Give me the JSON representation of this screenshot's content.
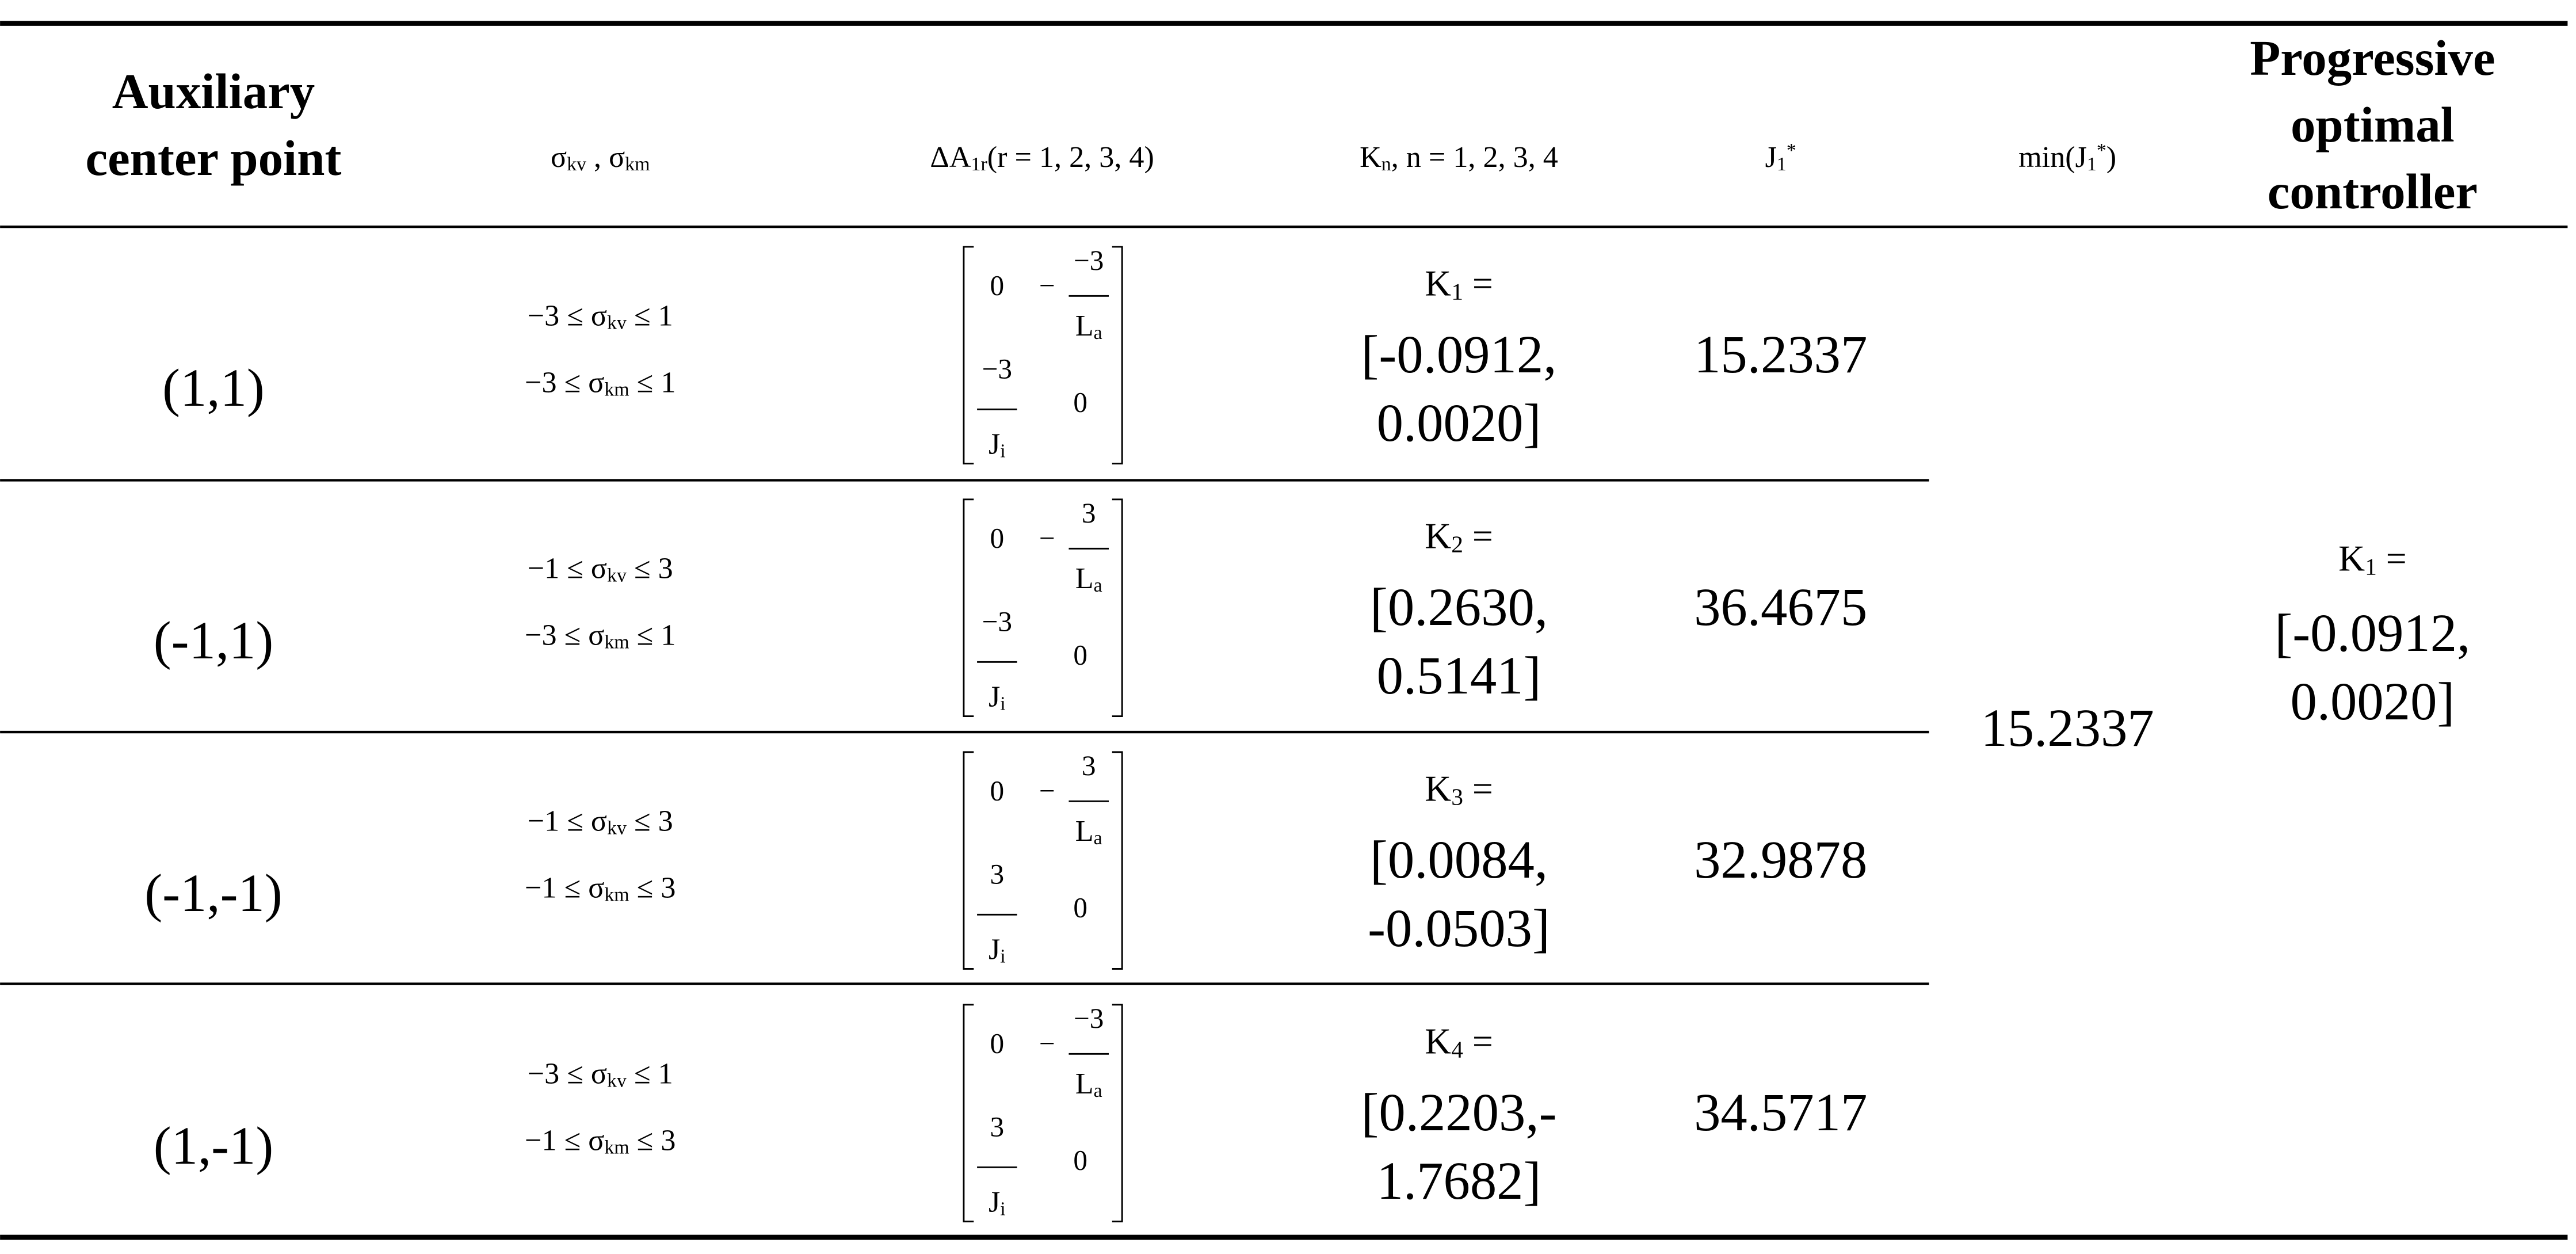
{
  "table": {
    "headers": [
      [
        [
          {
            "t": "Auxiliary"
          }
        ],
        [
          {
            "t": "center point"
          }
        ]
      ],
      [
        [
          {
            "t": "σ"
          },
          {
            "t": "kv",
            "s": "sub"
          },
          {
            "t": " , "
          },
          {
            "t": "σ"
          },
          {
            "t": "km",
            "s": "sub"
          }
        ]
      ],
      [
        [
          {
            "t": "ΔA"
          },
          {
            "t": "1r",
            "s": "sub"
          },
          {
            "t": "(r = 1, 2, 3, 4)"
          }
        ]
      ],
      [
        [
          {
            "t": "K"
          },
          {
            "t": "n",
            "s": "sub"
          },
          {
            "t": ", n = 1, 2, 3, 4"
          }
        ]
      ],
      [
        [
          {
            "t": "J"
          },
          {
            "t": "1",
            "s": "sub"
          },
          {
            "t": "*",
            "s": "sup"
          }
        ]
      ],
      [
        [
          {
            "t": "min(J"
          },
          {
            "t": "1",
            "s": "sub"
          },
          {
            "t": "*",
            "s": "sup"
          },
          {
            "t": ")"
          }
        ]
      ],
      [
        [
          {
            "t": "Progressive"
          }
        ],
        [
          {
            "t": "optimal"
          }
        ],
        [
          {
            "t": "controller"
          }
        ]
      ]
    ],
    "rows": [
      {
        "point": "(1,1)",
        "sigma": [
          [
            {
              "t": "−3 ≤ σ"
            },
            {
              "t": "kv",
              "s": "sub"
            },
            {
              "t": " ≤ 1"
            }
          ],
          [
            {
              "t": "−3 ≤ σ"
            },
            {
              "t": "km",
              "s": "sub"
            },
            {
              "t": " ≤ 1"
            }
          ]
        ],
        "matrix": {
          "a11": "0",
          "a12": {
            "sign": "−",
            "num": "−3",
            "den": [
              {
                "t": "L"
              },
              {
                "t": "a",
                "s": "sub"
              }
            ]
          },
          "a21": {
            "num": "−3",
            "den": [
              {
                "t": "J"
              },
              {
                "t": "i",
                "s": "sub"
              }
            ]
          },
          "a22": "0"
        },
        "k_label": [
          {
            "t": "K"
          },
          {
            "t": "1",
            "s": "sub"
          },
          {
            "t": " ="
          }
        ],
        "k_value": [
          "[-0.0912,",
          "0.0020]"
        ],
        "j": "15.2337"
      },
      {
        "point": "(-1,1)",
        "sigma": [
          [
            {
              "t": "−1 ≤ σ"
            },
            {
              "t": "kv",
              "s": "sub"
            },
            {
              "t": " ≤ 3"
            }
          ],
          [
            {
              "t": "−3 ≤ σ"
            },
            {
              "t": "km",
              "s": "sub"
            },
            {
              "t": " ≤ 1"
            }
          ]
        ],
        "matrix": {
          "a11": "0",
          "a12": {
            "sign": "−",
            "num": "3",
            "den": [
              {
                "t": "L"
              },
              {
                "t": "a",
                "s": "sub"
              }
            ]
          },
          "a21": {
            "num": "−3",
            "den": [
              {
                "t": "J"
              },
              {
                "t": "i",
                "s": "sub"
              }
            ]
          },
          "a22": "0"
        },
        "k_label": [
          {
            "t": "K"
          },
          {
            "t": "2",
            "s": "sub"
          },
          {
            "t": " ="
          }
        ],
        "k_value": [
          "[0.2630,",
          "0.5141]"
        ],
        "j": "36.4675"
      },
      {
        "point": "(-1,-1)",
        "sigma": [
          [
            {
              "t": "−1 ≤ σ"
            },
            {
              "t": "kv",
              "s": "sub"
            },
            {
              "t": " ≤ 3"
            }
          ],
          [
            {
              "t": "−1 ≤ σ"
            },
            {
              "t": "km",
              "s": "sub"
            },
            {
              "t": " ≤ 3"
            }
          ]
        ],
        "matrix": {
          "a11": "0",
          "a12": {
            "sign": "−",
            "num": "3",
            "den": [
              {
                "t": "L"
              },
              {
                "t": "a",
                "s": "sub"
              }
            ]
          },
          "a21": {
            "num": "3",
            "den": [
              {
                "t": "J"
              },
              {
                "t": "i",
                "s": "sub"
              }
            ]
          },
          "a22": "0"
        },
        "k_label": [
          {
            "t": "K"
          },
          {
            "t": "3",
            "s": "sub"
          },
          {
            "t": " ="
          }
        ],
        "k_value": [
          "[0.0084,",
          "-0.0503]"
        ],
        "j": "32.9878"
      },
      {
        "point": "(1,-1)",
        "sigma": [
          [
            {
              "t": "−3 ≤ σ"
            },
            {
              "t": "kv",
              "s": "sub"
            },
            {
              "t": " ≤ 1"
            }
          ],
          [
            {
              "t": "−1 ≤ σ"
            },
            {
              "t": "km",
              "s": "sub"
            },
            {
              "t": " ≤ 3"
            }
          ]
        ],
        "matrix": {
          "a11": "0",
          "a12": {
            "sign": "−",
            "num": "−3",
            "den": [
              {
                "t": "L"
              },
              {
                "t": "a",
                "s": "sub"
              }
            ]
          },
          "a21": {
            "num": "3",
            "den": [
              {
                "t": "J"
              },
              {
                "t": "i",
                "s": "sub"
              }
            ]
          },
          "a22": "0"
        },
        "k_label": [
          {
            "t": "K"
          },
          {
            "t": "4",
            "s": "sub"
          },
          {
            "t": " ="
          }
        ],
        "k_value": [
          "[0.2203,-",
          "1.7682]"
        ],
        "j": "34.5717"
      }
    ],
    "min": "15.2337",
    "controller": {
      "label": [
        {
          "t": "K"
        },
        {
          "t": "1",
          "s": "sub"
        },
        {
          "t": " ="
        }
      ],
      "value": [
        "[-0.0912,",
        "0.0020]"
      ]
    }
  }
}
